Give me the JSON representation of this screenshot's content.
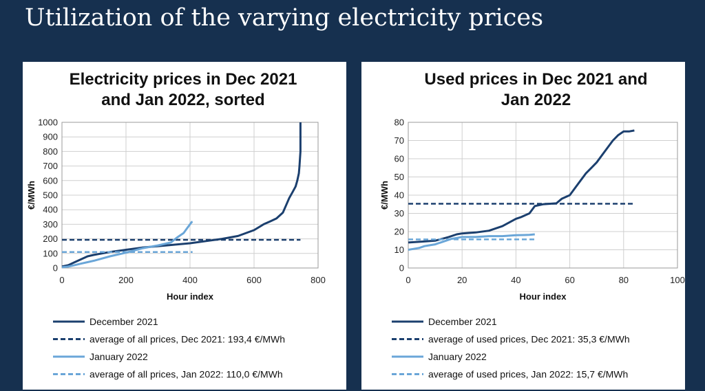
{
  "slide": {
    "title": "Utilization of the varying electricity prices"
  },
  "colors": {
    "dark": "#1b3f6e",
    "light": "#6aa6d8",
    "grid": "#cfcfcf"
  },
  "chart_data": [
    {
      "type": "line",
      "title": [
        "Electricity prices in Dec 2021",
        "and Jan 2022, sorted"
      ],
      "xlabel": "Hour index",
      "ylabel": "€/MWh",
      "xlim": [
        0,
        800
      ],
      "ylim": [
        0,
        1000
      ],
      "xticks": [
        0,
        200,
        400,
        600,
        800
      ],
      "yticks": [
        0,
        100,
        200,
        300,
        400,
        500,
        600,
        700,
        800,
        900,
        1000
      ],
      "grid": true,
      "legend_position": "bottom",
      "series": [
        {
          "name": "December 2021",
          "color": "dark",
          "style": "solid",
          "width": 3,
          "x": [
            0,
            20,
            40,
            60,
            80,
            100,
            150,
            200,
            250,
            300,
            350,
            400,
            450,
            500,
            550,
            600,
            630,
            650,
            670,
            690,
            700,
            710,
            720,
            730,
            735,
            740,
            742,
            745,
            745
          ],
          "y": [
            10,
            20,
            40,
            60,
            80,
            90,
            110,
            125,
            140,
            150,
            160,
            170,
            185,
            200,
            220,
            260,
            300,
            320,
            340,
            380,
            430,
            480,
            520,
            560,
            600,
            650,
            700,
            800,
            1000
          ]
        },
        {
          "name": "average of all prices, Dec 2021:  193,4 €/MWh",
          "color": "dark",
          "style": "dashed",
          "width": 2.5,
          "x": [
            0,
            745
          ],
          "y": [
            193.4,
            193.4
          ]
        },
        {
          "name": "January 2022",
          "color": "light",
          "style": "solid",
          "width": 3,
          "x": [
            0,
            20,
            40,
            60,
            80,
            100,
            150,
            200,
            250,
            300,
            340,
            360,
            380,
            390,
            400,
            405,
            408
          ],
          "y": [
            5,
            10,
            20,
            30,
            40,
            50,
            80,
            105,
            135,
            155,
            175,
            210,
            240,
            270,
            300,
            315,
            318
          ]
        },
        {
          "name": "average of all prices, Jan 2022:  110,0 €/MWh",
          "color": "light",
          "style": "dashed",
          "width": 2.5,
          "x": [
            0,
            408
          ],
          "y": [
            110,
            110
          ]
        }
      ]
    },
    {
      "type": "line",
      "title": [
        "Used prices in Dec 2021 and",
        "Jan 2022"
      ],
      "xlabel": "Hour index",
      "ylabel": "€/MWh",
      "xlim": [
        0,
        100
      ],
      "ylim": [
        0,
        80
      ],
      "xticks": [
        0,
        20,
        40,
        60,
        80,
        100
      ],
      "yticks": [
        0,
        10,
        20,
        30,
        40,
        50,
        60,
        70,
        80
      ],
      "grid": true,
      "legend_position": "bottom",
      "series": [
        {
          "name": "December 2021",
          "color": "dark",
          "style": "solid",
          "width": 3,
          "x": [
            0,
            5,
            10,
            15,
            18,
            20,
            25,
            30,
            35,
            40,
            42,
            45,
            47,
            50,
            55,
            57,
            60,
            62,
            64,
            66,
            68,
            70,
            72,
            74,
            76,
            78,
            80,
            82,
            84
          ],
          "y": [
            14,
            14.5,
            15,
            17,
            18.5,
            19,
            19.5,
            20.5,
            23,
            27,
            28,
            30,
            34,
            35,
            35.5,
            38,
            40,
            44,
            48,
            52,
            55,
            58,
            62,
            66,
            70,
            73,
            75,
            75,
            75.5
          ]
        },
        {
          "name": "average of used prices, Dec 2021: 35,3 €/MWh",
          "color": "dark",
          "style": "dashed",
          "width": 2.5,
          "x": [
            0,
            84
          ],
          "y": [
            35.3,
            35.3
          ]
        },
        {
          "name": "January 2022",
          "color": "light",
          "style": "solid",
          "width": 3,
          "x": [
            0,
            2,
            4,
            6,
            8,
            10,
            12,
            14,
            16,
            18,
            20,
            25,
            30,
            35,
            40,
            45,
            47
          ],
          "y": [
            10,
            10.5,
            11,
            12,
            12.5,
            13,
            14,
            15,
            16,
            16.5,
            17,
            17,
            17.5,
            17.5,
            18,
            18.2,
            18.5
          ]
        },
        {
          "name": "average of used prices, Jan 2022: 15,7 €/MWh",
          "color": "light",
          "style": "dashed",
          "width": 2.5,
          "x": [
            0,
            47
          ],
          "y": [
            15.7,
            15.7
          ]
        }
      ]
    }
  ]
}
